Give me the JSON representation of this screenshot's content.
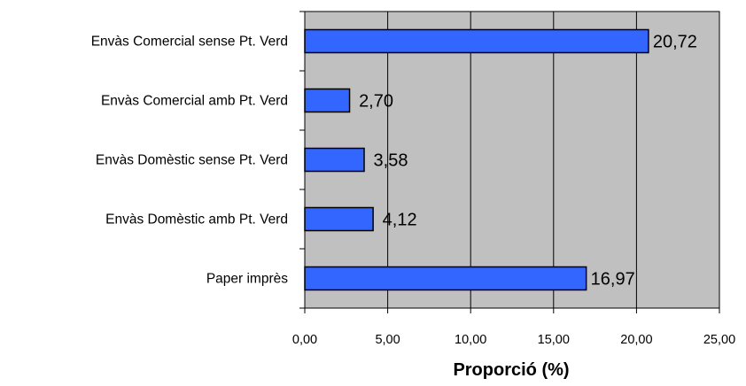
{
  "chart_data": {
    "type": "bar",
    "orientation": "horizontal",
    "categories": [
      "Envàs Comercial sense Pt. Verd",
      "Envàs Comercial amb Pt. Verd",
      "Envàs Domèstic sense Pt. Verd",
      "Envàs Domèstic amb Pt. Verd",
      "Paper imprès"
    ],
    "values": [
      20.72,
      2.7,
      3.58,
      4.12,
      16.97
    ],
    "data_labels": [
      "20,72",
      "2,70",
      "3,58",
      "4,12",
      "16,97"
    ],
    "xlabel": "Proporció (%)",
    "ylabel": "",
    "title": "",
    "xlim": [
      0,
      25
    ],
    "xticks": [
      0,
      5,
      10,
      15,
      20,
      25
    ],
    "xtick_labels": [
      "0,00",
      "5,00",
      "10,00",
      "15,00",
      "20,00",
      "25,00"
    ],
    "grid": "vertical",
    "legend": "none",
    "colors": {
      "bar": "#3366ff",
      "bar_border": "#000000",
      "plot_background": "#c0c0c0",
      "gridline": "#000000"
    }
  }
}
